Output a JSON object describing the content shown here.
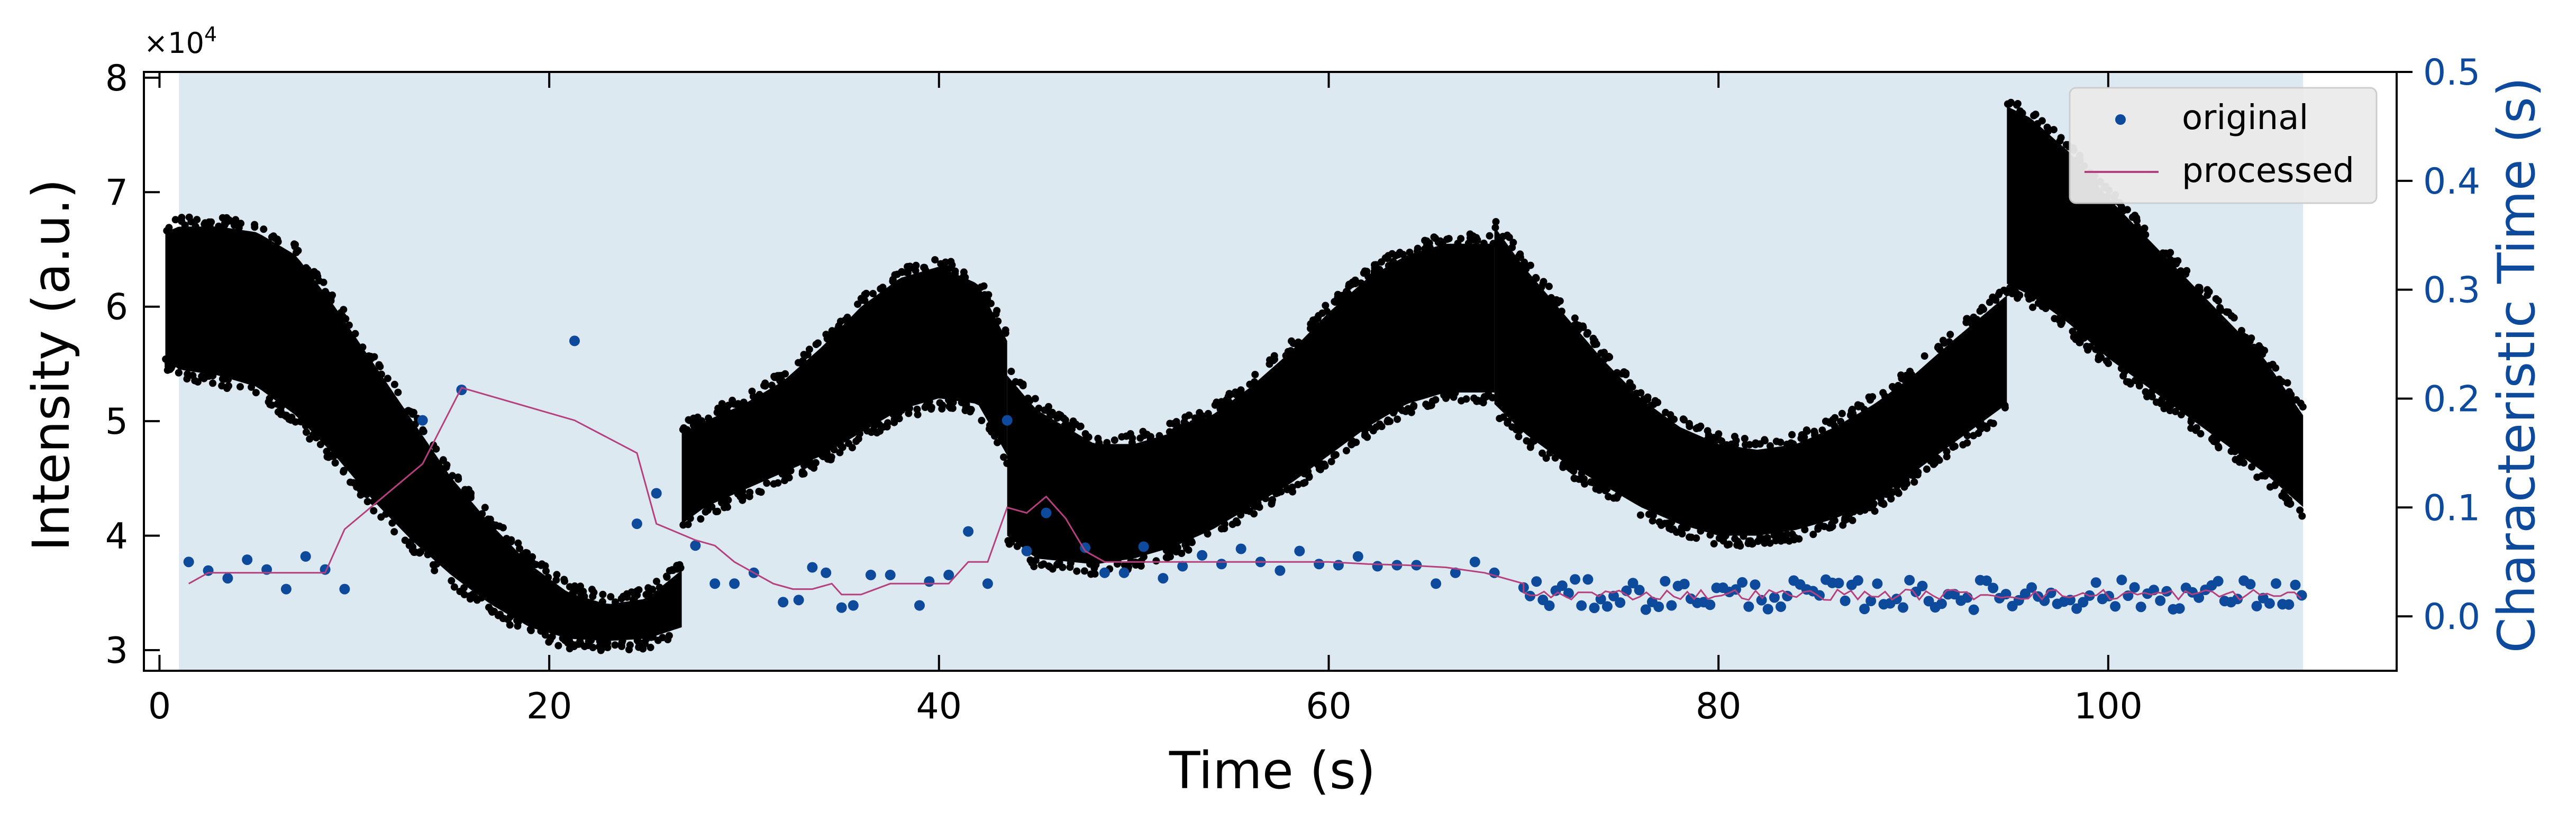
{
  "chart_data": {
    "type": "scatter",
    "title": "",
    "xlabel": "Time (s)",
    "ylabel": "Intensity (a.u.)",
    "ylabel_right": "Characteristic Time (s)",
    "y_multiplier": "×10",
    "y_multiplier_exp": "4",
    "xlim": [
      -0.8,
      114.8
    ],
    "ylim": [
      28200,
      80500
    ],
    "ylim_right": [
      -0.05,
      0.5
    ],
    "x_ticks": [
      {
        "value": 0,
        "label": "0"
      },
      {
        "value": 20,
        "label": "20"
      },
      {
        "value": 40,
        "label": "40"
      },
      {
        "value": 60,
        "label": "60"
      },
      {
        "value": 80,
        "label": "80"
      },
      {
        "value": 100,
        "label": "100"
      }
    ],
    "y_ticks": [
      {
        "value": 30000,
        "label": "3"
      },
      {
        "value": 40000,
        "label": "4"
      },
      {
        "value": 50000,
        "label": "5"
      },
      {
        "value": 60000,
        "label": "6"
      },
      {
        "value": 70000,
        "label": "7"
      },
      {
        "value": 80000,
        "label": "8"
      }
    ],
    "y_right_ticks": [
      {
        "value": 0.0,
        "label": "0.0"
      },
      {
        "value": 0.1,
        "label": "0.1"
      },
      {
        "value": 0.2,
        "label": "0.2"
      },
      {
        "value": 0.3,
        "label": "0.3"
      },
      {
        "value": 0.4,
        "label": "0.4"
      },
      {
        "value": 0.5,
        "label": "0.5"
      }
    ],
    "shaded_region": {
      "x": [
        1.0,
        110.0
      ],
      "color": "#dce9f1"
    },
    "grid": false,
    "legend_position": "top-right",
    "colors": {
      "intensity": "#000000",
      "original": "#0d4a9c",
      "processed": "#b5407e",
      "right_axis": "#0d4a9c",
      "legend_bg": "#ebebeb"
    },
    "intensity_band": {
      "description_axis": "left",
      "segments": [
        {
          "x": [
            0.3,
            1.0,
            3.0,
            5.0,
            7.0,
            9.0,
            11.0,
            13.0,
            15.0,
            17.0,
            19.0,
            21.0,
            23.0,
            25.0,
            26.8
          ],
          "low": [
            55500,
            54500,
            54000,
            53000,
            50500,
            47000,
            43000,
            39500,
            36500,
            34000,
            32000,
            31000,
            30800,
            31000,
            32000
          ],
          "high": [
            66500,
            67000,
            67000,
            66500,
            64500,
            60000,
            55000,
            50000,
            45000,
            41000,
            37500,
            35000,
            34000,
            34500,
            37000
          ]
        },
        {
          "x": [
            26.8,
            28,
            30,
            32,
            34,
            36,
            38,
            40,
            42,
            43.5
          ],
          "low": [
            41000,
            42500,
            44000,
            45500,
            47000,
            49000,
            51000,
            52000,
            51500,
            47000
          ],
          "high": [
            49000,
            50000,
            51500,
            53500,
            56500,
            60000,
            62500,
            63500,
            62000,
            57000
          ]
        },
        {
          "x": [
            43.5,
            45,
            48,
            50,
            52,
            54,
            56,
            58,
            60,
            62,
            64,
            66,
            68.5
          ],
          "low": [
            40000,
            38000,
            37500,
            38000,
            39000,
            40500,
            42500,
            44500,
            47000,
            49500,
            51500,
            52500,
            52500
          ],
          "high": [
            54000,
            51000,
            48000,
            48000,
            49000,
            50500,
            53000,
            56000,
            59500,
            62500,
            64500,
            65500,
            65500
          ]
        },
        {
          "x": [
            68.5,
            70,
            72,
            74,
            76,
            78,
            80,
            82,
            84,
            86,
            88,
            90,
            92,
            94.8
          ],
          "low": [
            51500,
            49000,
            46500,
            44500,
            42500,
            41000,
            40000,
            40000,
            40500,
            41500,
            43000,
            45500,
            48000,
            51500
          ],
          "high": [
            67000,
            63500,
            59500,
            55500,
            52000,
            49500,
            48000,
            47500,
            48000,
            49500,
            51500,
            54000,
            57000,
            61000
          ]
        },
        {
          "x": [
            94.8,
            96,
            98,
            100,
            102,
            104,
            106,
            108,
            110
          ],
          "low": [
            62000,
            61000,
            58500,
            55500,
            53000,
            50500,
            48000,
            45500,
            42500
          ],
          "high": [
            77500,
            76500,
            73500,
            69500,
            66000,
            62500,
            59000,
            55500,
            50500
          ]
        }
      ]
    },
    "series": [
      {
        "name": "original",
        "axis": "right",
        "kind": "scatter",
        "x": [
          1.5,
          2.5,
          3.5,
          4.5,
          5.5,
          6.5,
          7.5,
          8.5,
          9.5,
          13.5,
          15.5,
          21.3,
          24.5,
          25.5,
          27.5,
          28.5,
          29.5,
          30.5,
          32.0,
          32.8,
          33.5,
          34.2,
          35.0,
          35.6,
          36.5,
          37.5,
          39.0,
          39.5,
          40.5,
          41.5,
          42.5,
          43.5,
          44.5,
          45.5,
          47.5,
          48.5,
          49.5,
          50.5,
          51.5,
          52.5,
          53.5,
          54.5,
          55.5,
          56.5,
          57.5,
          58.5,
          59.5,
          60.5,
          61.5,
          62.5,
          63.5,
          64.5,
          65.5,
          66.5,
          67.5,
          68.5
        ],
        "y": [
          0.05,
          0.042,
          0.035,
          0.052,
          0.043,
          0.025,
          0.055,
          0.043,
          0.025,
          0.18,
          0.208,
          0.253,
          0.085,
          0.113,
          0.065,
          0.03,
          0.03,
          0.04,
          0.013,
          0.015,
          0.045,
          0.04,
          0.008,
          0.01,
          0.038,
          0.038,
          0.01,
          0.032,
          0.038,
          0.078,
          0.03,
          0.18,
          0.06,
          0.095,
          0.063,
          0.04,
          0.04,
          0.064,
          0.035,
          0.046,
          0.056,
          0.048,
          0.062,
          0.05,
          0.042,
          0.06,
          0.048,
          0.047,
          0.055,
          0.046,
          0.047,
          0.047,
          0.03,
          0.04,
          0.05,
          0.04
        ]
      },
      {
        "name": "processed",
        "axis": "right",
        "kind": "line",
        "x": [
          1.5,
          2.5,
          3.5,
          4.5,
          5.5,
          6.5,
          7.5,
          8.5,
          9.5,
          11.5,
          13.5,
          15.5,
          21.3,
          24.5,
          25.5,
          27.5,
          28.5,
          29.5,
          30.5,
          31.5,
          32.5,
          33.5,
          34.5,
          35.0,
          36.0,
          37.5,
          39.0,
          40.5,
          41.5,
          42.5,
          43.5,
          44.5,
          45.5,
          46.5,
          47.5,
          48.5,
          50.0,
          52.0,
          54.0,
          56.0,
          58.0,
          60.0,
          62.0,
          64.0,
          66.0,
          68.0,
          70.0
        ],
        "y": [
          0.03,
          0.04,
          0.04,
          0.04,
          0.04,
          0.04,
          0.04,
          0.04,
          0.08,
          0.11,
          0.14,
          0.21,
          0.18,
          0.15,
          0.085,
          0.07,
          0.065,
          0.05,
          0.04,
          0.03,
          0.025,
          0.025,
          0.03,
          0.02,
          0.02,
          0.03,
          0.03,
          0.03,
          0.05,
          0.05,
          0.1,
          0.095,
          0.11,
          0.09,
          0.06,
          0.05,
          0.05,
          0.05,
          0.05,
          0.05,
          0.05,
          0.05,
          0.048,
          0.047,
          0.045,
          0.04,
          0.03
        ]
      }
    ],
    "dense_region": {
      "x": [
        70.0,
        110.0
      ],
      "y_center": 0.02,
      "y_spread": 0.014,
      "line_center": 0.02
    },
    "legend": [
      {
        "label": "original",
        "marker": "dot"
      },
      {
        "label": "processed",
        "marker": "line"
      }
    ]
  }
}
